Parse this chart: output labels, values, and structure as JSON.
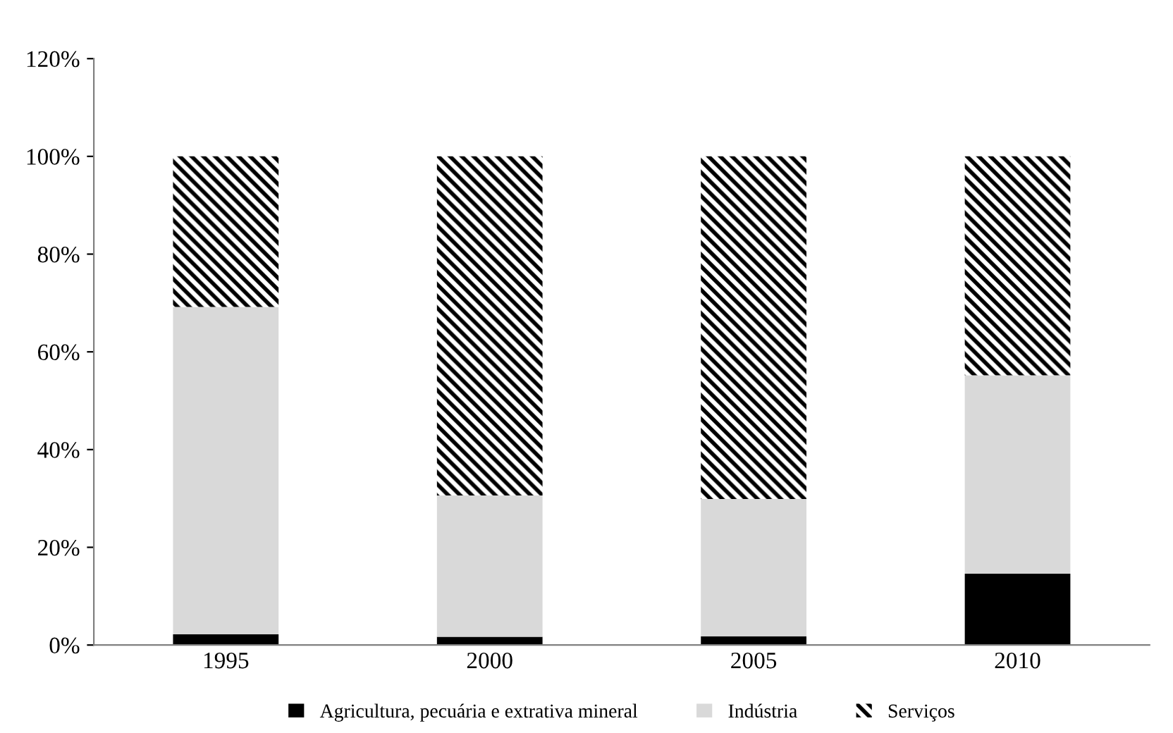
{
  "chart_data": {
    "type": "bar",
    "stacked": true,
    "categories": [
      "1995",
      "2000",
      "2005",
      "2010"
    ],
    "series": [
      {
        "name": "Agricultura, pecuária e extrativa mineral",
        "color": "#000000",
        "values": [
          2.2,
          1.7,
          1.8,
          14.6
        ]
      },
      {
        "name": "Indústria",
        "color": "#d9d9d9",
        "values": [
          67.0,
          28.9,
          28.1,
          40.6
        ]
      },
      {
        "name": "Serviços",
        "color": "#000000",
        "values": [
          30.8,
          69.4,
          70.1,
          44.8
        ]
      }
    ],
    "ylim": [
      0,
      120
    ],
    "yticks": [
      {
        "value": 0,
        "label": "0%"
      },
      {
        "value": 20,
        "label": "20%"
      },
      {
        "value": 40,
        "label": "40%"
      },
      {
        "value": 60,
        "label": "60%"
      },
      {
        "value": 80,
        "label": "80%"
      },
      {
        "value": 100,
        "label": "100%"
      },
      {
        "value": 120,
        "label": "120%"
      }
    ],
    "grid": false,
    "legend": "bottom"
  }
}
